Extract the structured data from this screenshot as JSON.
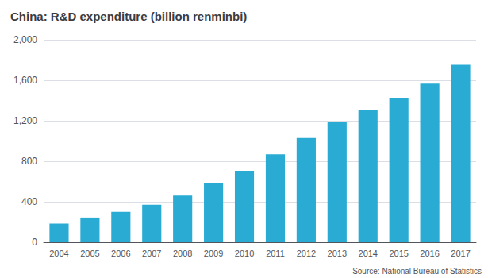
{
  "chart_data": {
    "type": "bar",
    "title": "China: R&D expenditure (billion renminbi)",
    "annotations": [
      "Source: National Bureau of Statistics"
    ],
    "categories": [
      "2004",
      "2005",
      "2006",
      "2007",
      "2008",
      "2009",
      "2010",
      "2011",
      "2012",
      "2013",
      "2014",
      "2015",
      "2016",
      "2017"
    ],
    "values": [
      184,
      244,
      300,
      371,
      461,
      580,
      706,
      868,
      1030,
      1185,
      1302,
      1423,
      1567,
      1753
    ],
    "color": "#29ABD4",
    "ylim": [
      0,
      2000
    ],
    "yticks": [
      0,
      400,
      800,
      {
        "value": 1200,
        "label": "1,200"
      },
      {
        "value": 1600,
        "label": "1,600"
      },
      {
        "value": 2000,
        "label": "2,000"
      }
    ],
    "grid": true
  }
}
